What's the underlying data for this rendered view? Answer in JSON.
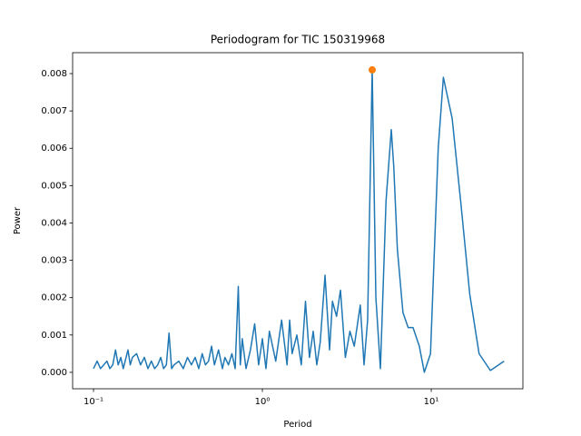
{
  "chart_data": {
    "type": "line",
    "title": "Periodogram for TIC 150319968",
    "x_label": "Period",
    "y_label": "Power",
    "xscale": "log",
    "xlim": [
      0.0752,
      34.9
    ],
    "ylim": [
      -0.00044,
      0.00856
    ],
    "xticks": [
      {
        "value": 0.1,
        "label": "10⁻¹"
      },
      {
        "value": 1,
        "label": "10⁰"
      },
      {
        "value": 10,
        "label": "10¹"
      }
    ],
    "yticks": [
      {
        "value": 0,
        "label": "0.000"
      },
      0.001,
      0.002,
      0.003,
      0.004,
      0.005,
      0.006,
      0.007,
      0.008
    ],
    "series": [
      {
        "style": "line",
        "color": "#1f77b4",
        "x": [
          0.1,
          0.105,
          0.11,
          0.115,
          0.12,
          0.125,
          0.13,
          0.135,
          0.14,
          0.145,
          0.15,
          0.16,
          0.165,
          0.17,
          0.18,
          0.19,
          0.2,
          0.21,
          0.22,
          0.23,
          0.24,
          0.25,
          0.26,
          0.27,
          0.28,
          0.29,
          0.3,
          0.32,
          0.34,
          0.36,
          0.38,
          0.4,
          0.42,
          0.44,
          0.46,
          0.48,
          0.5,
          0.52,
          0.55,
          0.58,
          0.6,
          0.63,
          0.66,
          0.69,
          0.72,
          0.74,
          0.76,
          0.8,
          0.85,
          0.9,
          0.95,
          1.0,
          1.05,
          1.1,
          1.2,
          1.3,
          1.4,
          1.45,
          1.5,
          1.6,
          1.7,
          1.8,
          1.9,
          2.0,
          2.1,
          2.2,
          2.35,
          2.5,
          2.6,
          2.75,
          2.9,
          3.1,
          3.3,
          3.5,
          3.8,
          4.0,
          4.2,
          4.47,
          4.7,
          5.0,
          5.4,
          5.8,
          6.0,
          6.3,
          6.8,
          7.3,
          7.8,
          8.5,
          9.1,
          9.9,
          11.0,
          11.8,
          13.3,
          15.0,
          16.9,
          19.2,
          22.4,
          27.0
        ],
        "values": [
          0.0001,
          0.0003,
          0.0001,
          0.0002,
          0.0003,
          0.0001,
          0.0002,
          0.0006,
          0.0002,
          0.0004,
          0.0001,
          0.0006,
          0.0002,
          0.0004,
          0.0005,
          0.0002,
          0.0004,
          0.0001,
          0.0003,
          0.0001,
          0.0002,
          0.0004,
          0.0001,
          0.0002,
          0.00105,
          0.0001,
          0.0002,
          0.0003,
          0.0001,
          0.0004,
          0.0002,
          0.0004,
          0.0001,
          0.0005,
          0.0002,
          0.0003,
          0.0007,
          0.0002,
          0.0006,
          0.0001,
          0.0004,
          0.0002,
          0.0005,
          0.0001,
          0.0023,
          0.0002,
          0.0009,
          0.0001,
          0.0006,
          0.0013,
          0.0002,
          0.0009,
          0.0001,
          0.0011,
          0.0003,
          0.0014,
          0.0002,
          0.0014,
          0.0005,
          0.001,
          0.0002,
          0.0019,
          0.0004,
          0.0011,
          0.0002,
          0.0008,
          0.0026,
          0.0006,
          0.0019,
          0.0015,
          0.0022,
          0.0004,
          0.0011,
          0.0007,
          0.0018,
          0.0002,
          0.0014,
          0.0081,
          0.002,
          0.0001,
          0.0046,
          0.0065,
          0.0055,
          0.0033,
          0.0016,
          0.0012,
          0.0012,
          0.0007,
          0.0,
          0.0005,
          0.006,
          0.0079,
          0.0068,
          0.0045,
          0.0021,
          0.0005,
          5e-05,
          0.0003
        ]
      },
      {
        "style": "marker",
        "color": "#ff7f0e",
        "x": [
          4.47
        ],
        "values": [
          0.0081
        ]
      }
    ]
  }
}
